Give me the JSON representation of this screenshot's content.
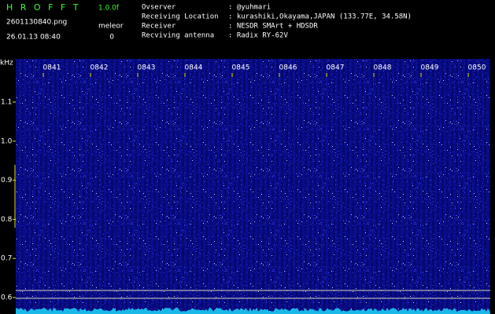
{
  "header": {
    "app": "H R O F F T",
    "version": "1.0.0f",
    "file": "2601130840.png",
    "mode": "meleor",
    "datetime": "26.01.13 08:40",
    "count": "0",
    "info": [
      [
        "Ovserver",
        ": @yuhmari"
      ],
      [
        "Receiving Location",
        ": kurashiki,Okayama,JAPAN (133.77E, 34.58N)"
      ],
      [
        "Receiver",
        ": NESDR SMArt + HDSDR"
      ],
      [
        "Recviving antenna",
        ": Radix RY-62V"
      ]
    ]
  },
  "spectrogram": {
    "unit": "kHz",
    "freq_labels": [
      "1.1",
      "1.0",
      "0.9",
      "0.8",
      "0.7",
      "0.6"
    ],
    "time_labels": [
      "0841",
      "0842",
      "0843",
      "0844",
      "0845",
      "0846",
      "0847",
      "0848",
      "0849",
      "0850"
    ]
  }
}
